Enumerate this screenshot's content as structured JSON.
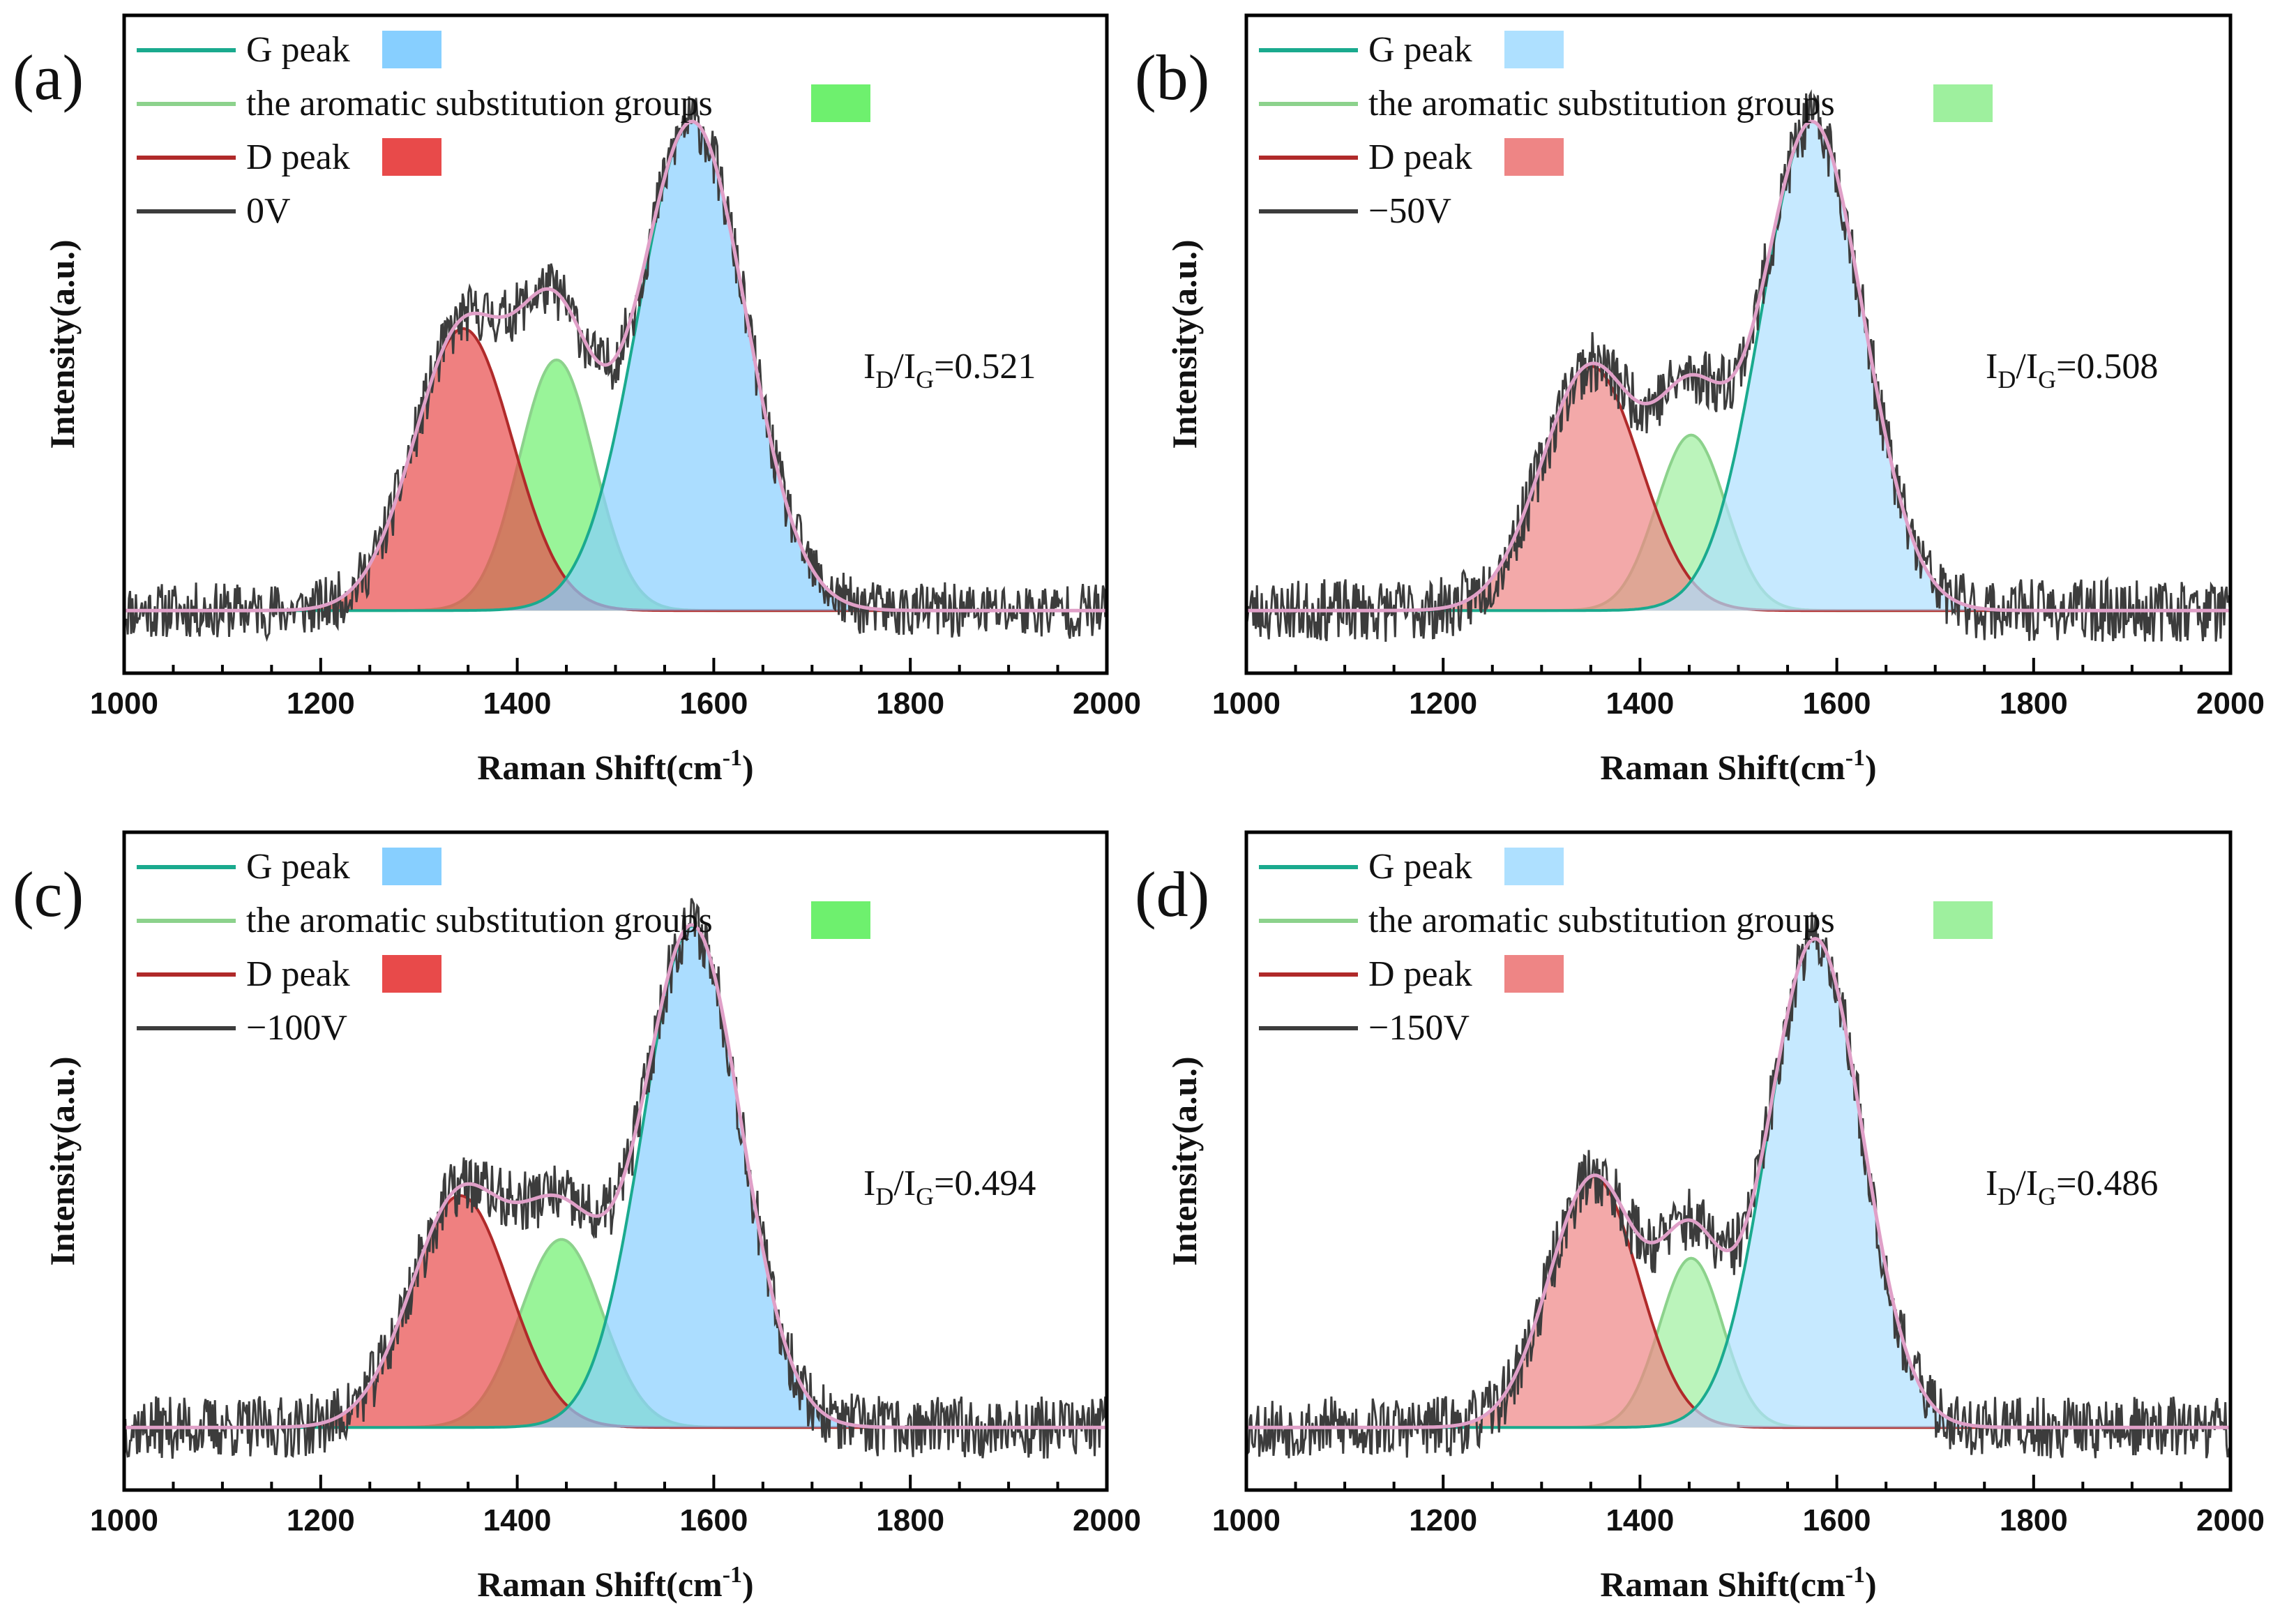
{
  "figure": {
    "ratio_prefix": "I",
    "ratio_sub_d": "D",
    "ratio_slash": "/I",
    "ratio_sub_g": "G",
    "ratio_eq": "=",
    "colors": {
      "g_line": "#1aaa8e",
      "arom_line": "#8cd28c",
      "d_line": "#b02a2a",
      "raw_line": "#3c3c3c",
      "envelope_line": "#e0a0c8",
      "g_fill_strong": "#87cfff",
      "arom_fill_strong": "#6ef06e",
      "d_fill_strong": "#e84a4a",
      "g_fill_light": "#aee0ff",
      "arom_fill_light": "#9ef09e",
      "d_fill_light": "#ee8585"
    }
  },
  "chart_data": [
    {
      "type": "line",
      "panel": "(a)",
      "xlabel": "Raman Shift(cm-1)",
      "xlabel_main": "Raman Shift(cm",
      "xlabel_sup": "-1",
      "xlabel_end": ")",
      "ylabel": "Intensity(a.u.)",
      "xlim": [
        1000,
        2000
      ],
      "xticks": [
        "1000",
        "1200",
        "1400",
        "1600",
        "1800",
        "2000"
      ],
      "ylim": [
        -0.1,
        0.95
      ],
      "ratio_value": "0.521",
      "legend": [
        "G peak",
        "the aromatic substitution groups",
        "D peak",
        "0V"
      ],
      "baseline": 0.0,
      "peaks": [
        {
          "name": "G peak",
          "center": 1578,
          "amplitude": 0.78,
          "width": 55
        },
        {
          "name": "the aromatic substitution groups",
          "center": 1440,
          "amplitude": 0.4,
          "width": 38
        },
        {
          "name": "D peak",
          "center": 1345,
          "amplitude": 0.45,
          "width": 50
        }
      ],
      "noise": 0.045,
      "seed": 11,
      "fill_style": "strong"
    },
    {
      "type": "line",
      "panel": "(b)",
      "xlabel": "Raman Shift(cm-1)",
      "xlabel_main": "Raman Shift(cm",
      "xlabel_sup": "-1",
      "xlabel_end": ")",
      "ylabel": "Intensity(a.u.)",
      "xlim": [
        1000,
        2000
      ],
      "xticks": [
        "1000",
        "1200",
        "1400",
        "1600",
        "1800",
        "2000"
      ],
      "ylim": [
        -0.1,
        0.95
      ],
      "ratio_value": "0.508",
      "legend": [
        "G peak",
        "the aromatic substitution groups",
        "D peak",
        "−50V"
      ],
      "baseline": 0.0,
      "peaks": [
        {
          "name": "G peak",
          "center": 1575,
          "amplitude": 0.78,
          "width": 52
        },
        {
          "name": "the aromatic substitution groups",
          "center": 1452,
          "amplitude": 0.28,
          "width": 35
        },
        {
          "name": "D peak",
          "center": 1350,
          "amplitude": 0.39,
          "width": 50
        }
      ],
      "noise": 0.05,
      "seed": 23,
      "fill_style": "light"
    },
    {
      "type": "line",
      "panel": "(c)",
      "xlabel": "Raman Shift(cm-1)",
      "xlabel_main": "Raman Shift(cm",
      "xlabel_sup": "-1",
      "xlabel_end": ")",
      "ylabel": "Intensity(a.u.)",
      "xlim": [
        1000,
        2000
      ],
      "xticks": [
        "1000",
        "1200",
        "1400",
        "1600",
        "1800",
        "2000"
      ],
      "ylim": [
        -0.1,
        0.95
      ],
      "ratio_value": "0.494",
      "legend": [
        "G peak",
        "the aromatic substitution groups",
        "D peak",
        "−100V"
      ],
      "baseline": 0.0,
      "peaks": [
        {
          "name": "G peak",
          "center": 1578,
          "amplitude": 0.8,
          "width": 50
        },
        {
          "name": "the aromatic substitution groups",
          "center": 1445,
          "amplitude": 0.3,
          "width": 42
        },
        {
          "name": "D peak",
          "center": 1342,
          "amplitude": 0.37,
          "width": 50
        }
      ],
      "noise": 0.05,
      "seed": 37,
      "fill_style": "strong"
    },
    {
      "type": "line",
      "panel": "(d)",
      "xlabel": "Raman Shift(cm-1)",
      "xlabel_main": "Raman Shift(cm",
      "xlabel_sup": "-1",
      "xlabel_end": ")",
      "ylabel": "Intensity(a.u.)",
      "xlim": [
        1000,
        2000
      ],
      "xticks": [
        "1000",
        "1200",
        "1400",
        "1600",
        "1800",
        "2000"
      ],
      "ylim": [
        -0.1,
        0.95
      ],
      "ratio_value": "0.486",
      "legend": [
        "G peak",
        "the aromatic substitution groups",
        "D peak",
        "−150V"
      ],
      "baseline": 0.0,
      "peaks": [
        {
          "name": "G peak",
          "center": 1578,
          "amplitude": 0.78,
          "width": 48
        },
        {
          "name": "the aromatic substitution groups",
          "center": 1452,
          "amplitude": 0.27,
          "width": 32
        },
        {
          "name": "D peak",
          "center": 1353,
          "amplitude": 0.4,
          "width": 45
        }
      ],
      "noise": 0.05,
      "seed": 53,
      "fill_style": "light"
    }
  ]
}
